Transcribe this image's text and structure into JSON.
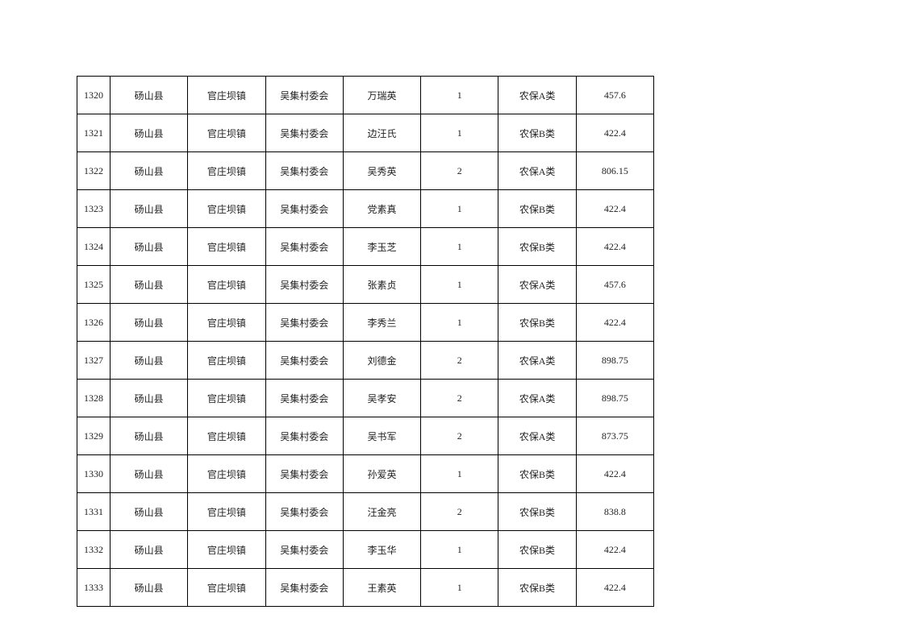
{
  "rows": [
    [
      "1320",
      "砀山县",
      "官庄坝镇",
      "吴集村委会",
      "万瑞英",
      "1",
      "农保A类",
      "457.6"
    ],
    [
      "1321",
      "砀山县",
      "官庄坝镇",
      "吴集村委会",
      "边汪氏",
      "1",
      "农保B类",
      "422.4"
    ],
    [
      "1322",
      "砀山县",
      "官庄坝镇",
      "吴集村委会",
      "吴秀英",
      "2",
      "农保A类",
      "806.15"
    ],
    [
      "1323",
      "砀山县",
      "官庄坝镇",
      "吴集村委会",
      "党素真",
      "1",
      "农保B类",
      "422.4"
    ],
    [
      "1324",
      "砀山县",
      "官庄坝镇",
      "吴集村委会",
      "李玉芝",
      "1",
      "农保B类",
      "422.4"
    ],
    [
      "1325",
      "砀山县",
      "官庄坝镇",
      "吴集村委会",
      "张素贞",
      "1",
      "农保A类",
      "457.6"
    ],
    [
      "1326",
      "砀山县",
      "官庄坝镇",
      "吴集村委会",
      "李秀兰",
      "1",
      "农保B类",
      "422.4"
    ],
    [
      "1327",
      "砀山县",
      "官庄坝镇",
      "吴集村委会",
      "刘德金",
      "2",
      "农保A类",
      "898.75"
    ],
    [
      "1328",
      "砀山县",
      "官庄坝镇",
      "吴集村委会",
      "吴孝安",
      "2",
      "农保A类",
      "898.75"
    ],
    [
      "1329",
      "砀山县",
      "官庄坝镇",
      "吴集村委会",
      "吴书军",
      "2",
      "农保A类",
      "873.75"
    ],
    [
      "1330",
      "砀山县",
      "官庄坝镇",
      "吴集村委会",
      "孙爱英",
      "1",
      "农保B类",
      "422.4"
    ],
    [
      "1331",
      "砀山县",
      "官庄坝镇",
      "吴集村委会",
      "汪金亮",
      "2",
      "农保B类",
      "838.8"
    ],
    [
      "1332",
      "砀山县",
      "官庄坝镇",
      "吴集村委会",
      "李玉华",
      "1",
      "农保B类",
      "422.4"
    ],
    [
      "1333",
      "砀山县",
      "官庄坝镇",
      "吴集村委会",
      "王素英",
      "1",
      "农保B类",
      "422.4"
    ]
  ]
}
